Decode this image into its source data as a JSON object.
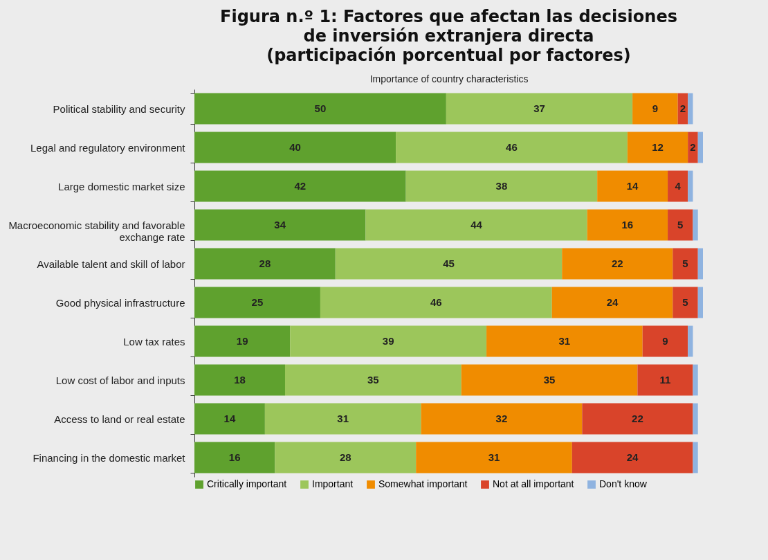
{
  "chart_data": {
    "type": "bar",
    "orientation": "horizontal",
    "stacked": true,
    "title": "Figura n.º 1: Factores que afectan las decisiones\nde inversión extranjera directa\n(participación porcentual por factores)",
    "subtitle": "Importance of country characteristics",
    "categories": [
      "Political stability and security",
      "Legal and regulatory environment",
      "Large domestic market size",
      "Macroeconomic stability and favorable\nexchange rate",
      "Available talent and skill of labor",
      "Good physical infrastructure",
      "Low tax rates",
      "Low cost of labor and inputs",
      "Access to land or real estate",
      "Financing in the domestic market"
    ],
    "series": [
      {
        "name": "Critically important",
        "color": "#5fa12e",
        "values": [
          50,
          40,
          42,
          34,
          28,
          25,
          19,
          18,
          14,
          16
        ],
        "value_labels": [
          "50",
          "40",
          "42",
          "34",
          "28",
          "25",
          "19",
          "18",
          "14",
          "16"
        ]
      },
      {
        "name": "Important",
        "color": "#9cc65b",
        "values": [
          37,
          46,
          38,
          44,
          45,
          46,
          39,
          35,
          31,
          28
        ],
        "value_labels": [
          "37",
          "46",
          "38",
          "44",
          "45",
          "46",
          "39",
          "35",
          "31",
          "28"
        ]
      },
      {
        "name": "Somewhat important",
        "color": "#f08c00",
        "values": [
          9,
          12,
          14,
          16,
          22,
          24,
          31,
          35,
          32,
          31
        ],
        "value_labels": [
          "9",
          "12",
          "14",
          "16",
          "22",
          "24",
          "31",
          "35",
          "32",
          "31"
        ]
      },
      {
        "name": "Not at all important",
        "color": "#d9442a",
        "values": [
          2,
          2,
          4,
          5,
          5,
          5,
          9,
          11,
          22,
          24
        ],
        "value_labels": [
          "2",
          "2",
          "4",
          "5",
          "5",
          "5",
          "9",
          "11",
          "22",
          "24"
        ]
      },
      {
        "name": "Don't know",
        "color": "#8fb3e0",
        "values": [
          1,
          1,
          1,
          1,
          1,
          1,
          1,
          1,
          1,
          1
        ],
        "value_labels": [
          null,
          null,
          null,
          null,
          null,
          null,
          null,
          null,
          null,
          null
        ]
      }
    ],
    "legend": "bottom"
  }
}
